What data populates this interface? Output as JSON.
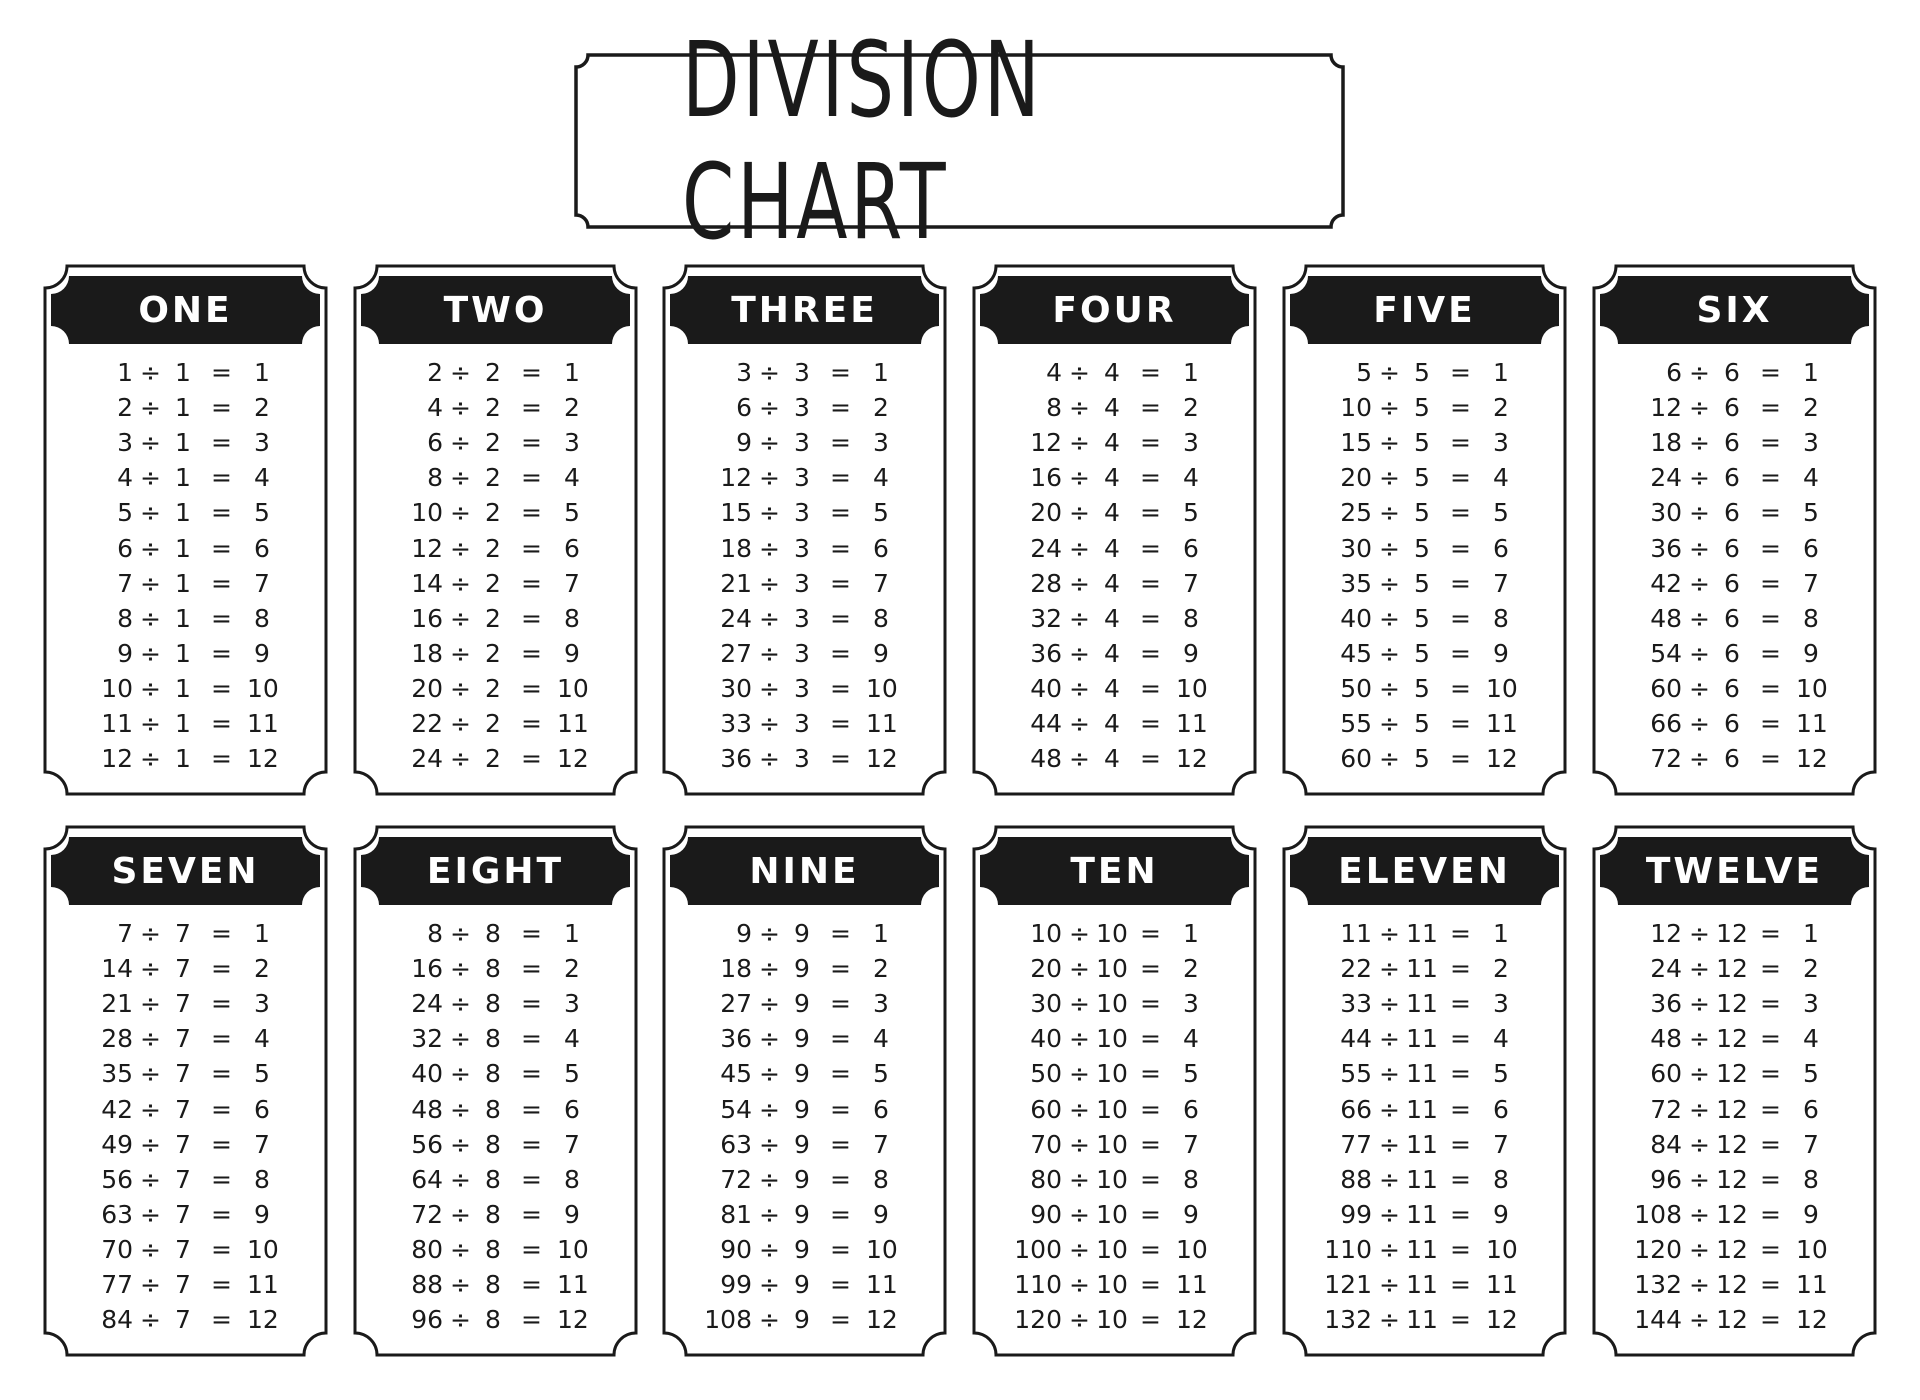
{
  "title": "DIVISION CHART",
  "symbols": {
    "divide": "÷",
    "equals": "="
  },
  "colors": {
    "ink": "#1a1a1a",
    "background": "#ffffff",
    "header_text": "#ffffff"
  },
  "tables": [
    {
      "title": "ONE",
      "divisor": 1
    },
    {
      "title": "TWO",
      "divisor": 2
    },
    {
      "title": "THREE",
      "divisor": 3
    },
    {
      "title": "FOUR",
      "divisor": 4
    },
    {
      "title": "FIVE",
      "divisor": 5
    },
    {
      "title": "SIX",
      "divisor": 6
    },
    {
      "title": "SEVEN",
      "divisor": 7
    },
    {
      "title": "EIGHT",
      "divisor": 8
    },
    {
      "title": "NINE",
      "divisor": 9
    },
    {
      "title": "TEN",
      "divisor": 10
    },
    {
      "title": "ELEVEN",
      "divisor": 11
    },
    {
      "title": "TWELVE",
      "divisor": 12
    }
  ],
  "quotients": [
    1,
    2,
    3,
    4,
    5,
    6,
    7,
    8,
    9,
    10,
    11,
    12
  ]
}
